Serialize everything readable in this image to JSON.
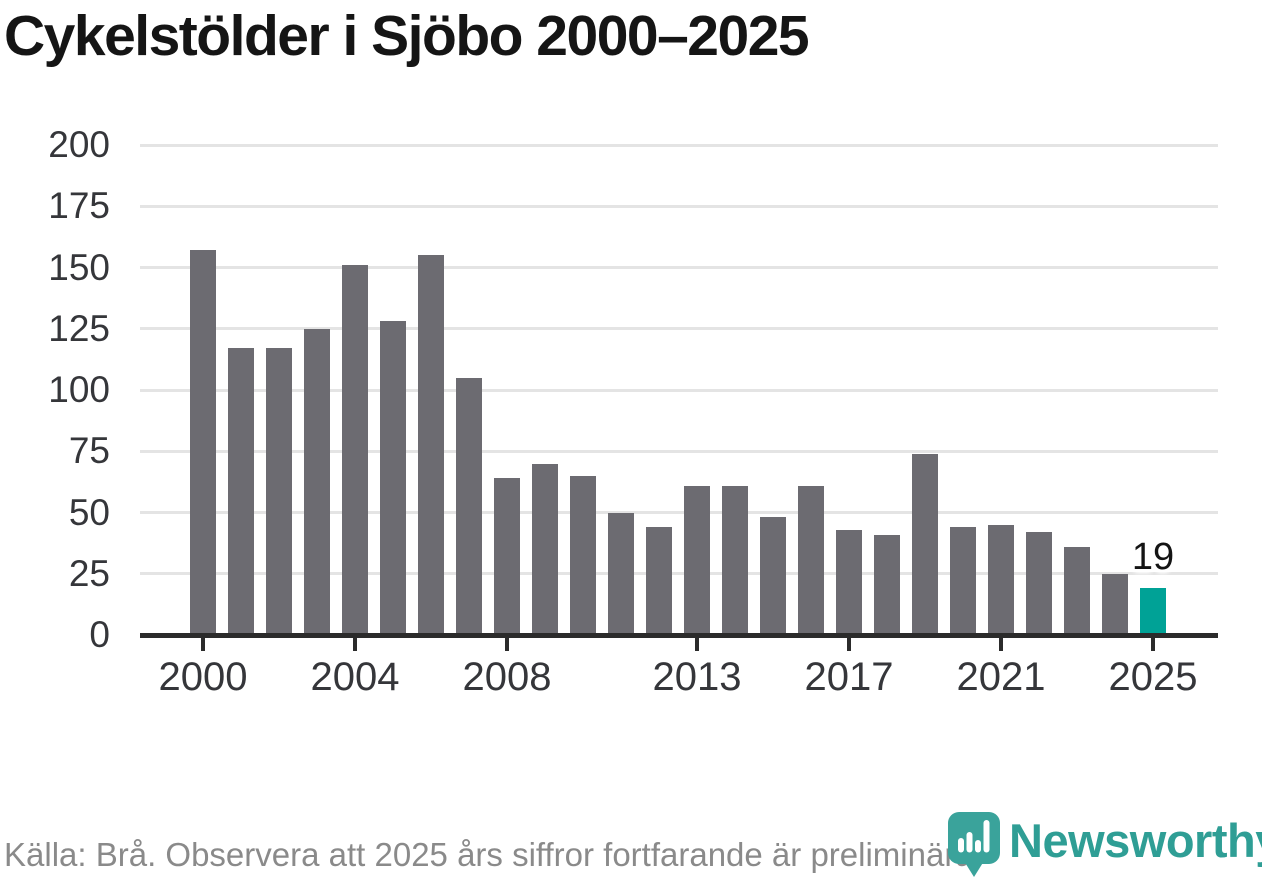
{
  "title": "Cykelstölder i Sjöbo 2000–2025",
  "chart_data": {
    "type": "bar",
    "title": "Cykelstölder i Sjöbo 2000–2025",
    "categories": [
      "2000",
      "2001",
      "2002",
      "2003",
      "2004",
      "2005",
      "2006",
      "2007",
      "2008",
      "2009",
      "2010",
      "2011",
      "2012",
      "2013",
      "2014",
      "2015",
      "2016",
      "2017",
      "2018",
      "2019",
      "2020",
      "2021",
      "2022",
      "2023",
      "2024",
      "2025"
    ],
    "values": [
      157,
      117,
      117,
      125,
      151,
      128,
      155,
      105,
      64,
      70,
      65,
      50,
      44,
      61,
      61,
      48,
      61,
      43,
      41,
      74,
      44,
      45,
      42,
      36,
      25,
      19
    ],
    "xlabel": "",
    "ylabel": "",
    "ylim": [
      0,
      200
    ],
    "yticks": [
      0,
      25,
      50,
      75,
      100,
      125,
      150,
      175,
      200
    ],
    "xtick_labels": [
      "2000",
      "2004",
      "2008",
      "2013",
      "2017",
      "2021",
      "2025"
    ],
    "grid": true,
    "legend": "none",
    "bar_color": "#6c6b71",
    "highlight": {
      "index": 25,
      "color": "#00a296",
      "label": "19"
    }
  },
  "footer": {
    "source": "Källa: Brå. Observera att 2025 års siffror fortfarande är preliminära.",
    "brand": "Newsworthy"
  },
  "colors": {
    "accent_teal": "#00a296",
    "bar_gray": "#6c6b71",
    "logo_teal": "#2f9e95",
    "gridline": "#e4e4e4",
    "axis": "#2b2b2b"
  }
}
